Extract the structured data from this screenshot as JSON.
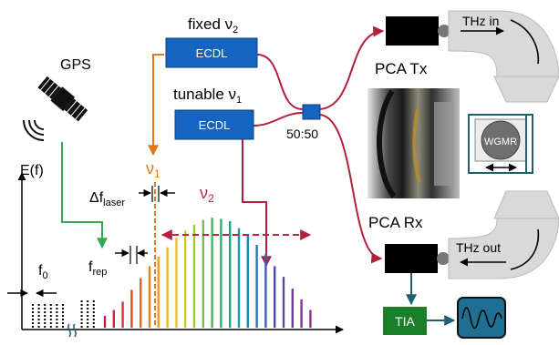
{
  "labels": {
    "gps": "GPS",
    "fixed_prefix": "fixed ν",
    "fixed_sub": "2",
    "tunable_prefix": "tunable ν",
    "tunable_sub": "1",
    "ecdl_top": "ECDL",
    "ecdl_bottom": "ECDL",
    "coupler": "50:50",
    "pca_tx": "PCA Tx",
    "pca_rx": "PCA Rx",
    "thz_in": "THz in",
    "thz_out": "THz out",
    "wgmr": "WGMR",
    "tia": "TIA",
    "ef": "E(f)",
    "f0_main": "f",
    "f0_sub": "0",
    "frep_main": "f",
    "frep_sub": "rep",
    "dflaser_main": "Δf",
    "dflaser_sub": "laser",
    "nu1_main": "ν",
    "nu1_sub": "1",
    "nu2_main": "ν",
    "nu2_sub": "2"
  },
  "colors": {
    "ecdl_fill": "#1565c0",
    "fiber": "#b3203c",
    "orange": "#e07a18",
    "green": "#33a852",
    "teal": "#1f5f6e",
    "tia_fill": "#1b7f2a",
    "scope_fill": "#1f6f93",
    "waveguide": "#d9d9d9"
  },
  "comb": {
    "dotted_amplitudes": [
      0.2,
      0.2,
      0.2,
      0.2,
      0.2,
      0.2,
      0.24,
      0.24,
      0.24
    ],
    "line_amplitudes": [
      0.1,
      0.15,
      0.22,
      0.32,
      0.42,
      0.52,
      0.6,
      0.68,
      0.76,
      0.82,
      0.87,
      0.91,
      0.93,
      0.92,
      0.9,
      0.84,
      0.78,
      0.7,
      0.62,
      0.52,
      0.43,
      0.33,
      0.24,
      0.15
    ],
    "line_colors": [
      "#b51f4a",
      "#c8273e",
      "#d93330",
      "#e24a26",
      "#e8631f",
      "#ee7d1c",
      "#f29a1e",
      "#f2b324",
      "#e8c52a",
      "#c8cd2c",
      "#9fca34",
      "#6fc244",
      "#45b85a",
      "#2eb074",
      "#22a590",
      "#1f99a8",
      "#2286b8",
      "#3070c0",
      "#3f5ac0",
      "#4f48b8",
      "#6142ae",
      "#733ca4",
      "#84369a",
      "#943090"
    ]
  }
}
